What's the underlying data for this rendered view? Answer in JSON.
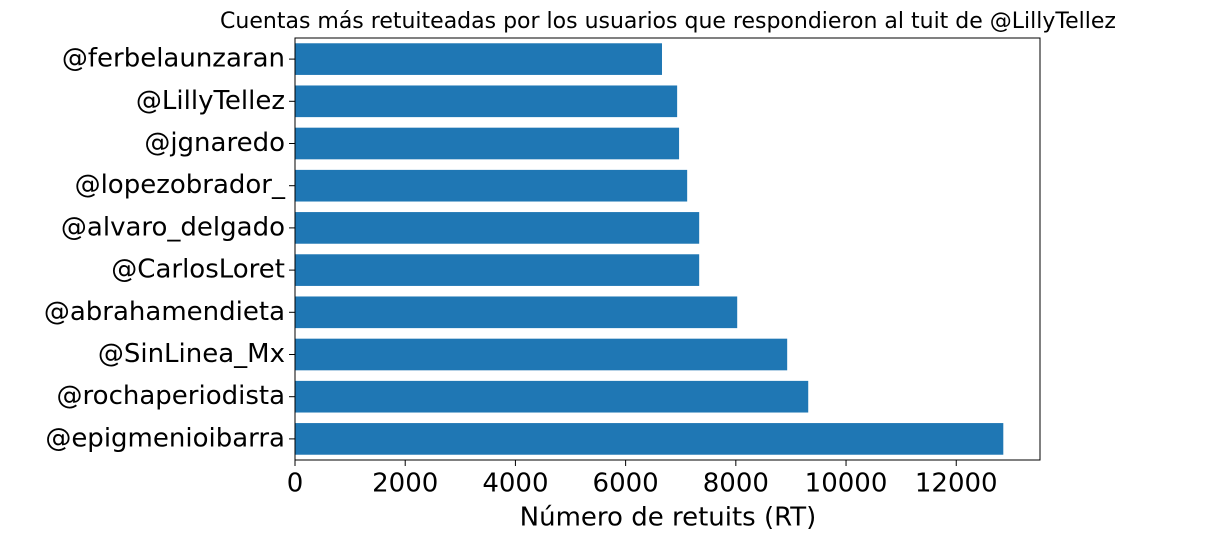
{
  "chart_data": {
    "type": "barh",
    "title": "Cuentas más retuiteadas por los usuarios que respondieron al tuit de @LillyTellez",
    "xlabel": "Número de retuits (RT)",
    "categories": [
      "@ferbelaunzaran",
      "@LillyTellez",
      "@jgnaredo",
      "@lopezobrador_",
      "@alvaro_delgado",
      "@CarlosLoret",
      "@abrahamendieta",
      "@SinLinea_Mx",
      "@rochaperiodista",
      "@epigmenioibarra"
    ],
    "values": [
      6660,
      6935,
      6970,
      7117,
      7335,
      7335,
      8025,
      8932,
      9314,
      12854
    ],
    "color": "#1f77b4",
    "xlim": [
      0,
      13520
    ],
    "xticks": [
      0,
      2000,
      4000,
      6000,
      8000,
      10000,
      12000
    ],
    "grid": false
  }
}
